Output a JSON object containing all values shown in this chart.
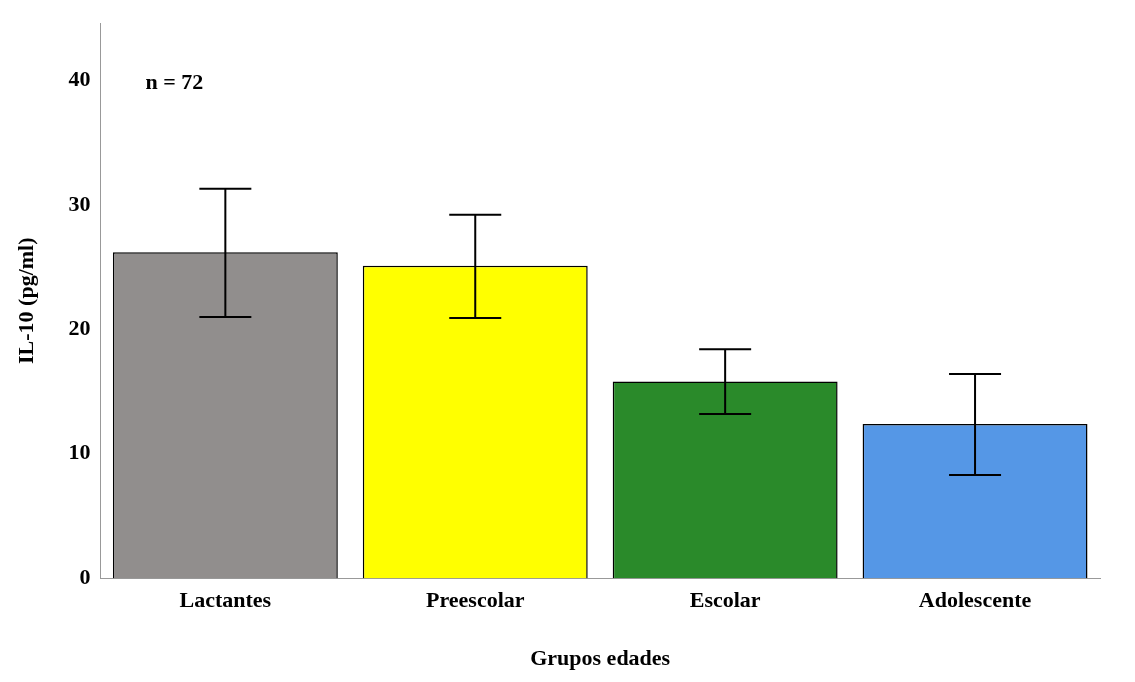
{
  "chart_data": {
    "type": "bar",
    "xlabel": "Grupos edades",
    "ylabel": "IL-10 (pg/ml)",
    "categories": [
      "Lactantes",
      "Preescolar",
      "Escolar",
      "Adolescente"
    ],
    "values": [
      26.2,
      25.1,
      15.8,
      12.4
    ],
    "colors": [
      "#918e8d",
      "#ffff00",
      "#2a8a2a",
      "#5597e6"
    ],
    "errors": [
      [
        21.0,
        31.3
      ],
      [
        20.9,
        29.2
      ],
      [
        13.2,
        18.4
      ],
      [
        8.3,
        16.4
      ]
    ],
    "ylim": [
      0,
      44.6
    ],
    "yticks": [
      0,
      10,
      20,
      30,
      40
    ],
    "grid": false,
    "legend": false,
    "annotations": [
      "n = 72"
    ]
  }
}
